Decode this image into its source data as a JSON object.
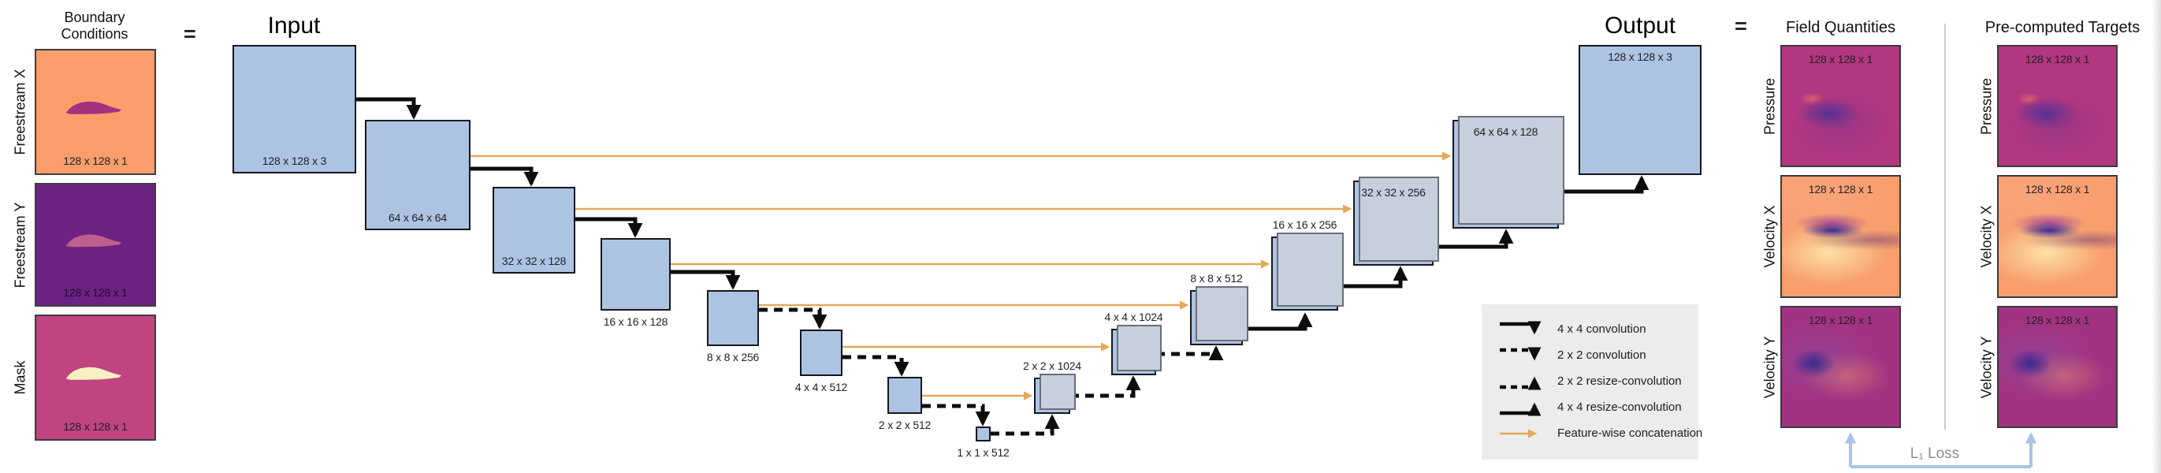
{
  "colors": {
    "node_fill": "#adc3e2",
    "node_border": "#16161e",
    "node_shadow": "#c6cfdb",
    "arrow_black": "#0d0d0d",
    "concat_orange": "#e2a95c",
    "legend_bg": "#ececec",
    "loss_blue": "#a9c4e4",
    "divider_gray": "#c9c9c9",
    "freestream_x_bg": "#f99d6a",
    "freestream_x_foil": "#a63080",
    "freestream_y_bg": "#6b2282",
    "freestream_y_foil": "#c05f8d",
    "mask_bg": "#c04480",
    "mask_foil": "#f8f0c0",
    "pressure_bg": "#b23680",
    "velocity_x_bg": "#f89e6c",
    "velocity_y_bg": "#a23382"
  },
  "left_panel": {
    "title": "Boundary Conditions",
    "equals": "=",
    "items": [
      {
        "label": "Freestream X",
        "dims": "128 x 128 x 1",
        "type": "bc-fsx"
      },
      {
        "label": "Freestream Y",
        "dims": "128 x 128 x 1",
        "type": "bc-fsy"
      },
      {
        "label": "Mask",
        "dims": "128 x 128 x 1",
        "type": "bc-mask"
      }
    ]
  },
  "network": {
    "input_title": "Input",
    "output_title": "Output",
    "nodes": [
      {
        "id": "input",
        "dims": "128 x 128 x 3"
      },
      {
        "id": "e64",
        "dims": "64 x 64 x 64"
      },
      {
        "id": "e32",
        "dims": "32 x 32 x 128"
      },
      {
        "id": "e16",
        "dims": "16 x 16 x 128"
      },
      {
        "id": "e8",
        "dims": "8 x 8 x 256"
      },
      {
        "id": "e4",
        "dims": "4 x 4 x 512"
      },
      {
        "id": "e2",
        "dims": "2 x 2 x 512"
      },
      {
        "id": "e1",
        "dims": "1 x 1 x 512"
      },
      {
        "id": "d2",
        "dims": "2 x 2 x 1024"
      },
      {
        "id": "d4",
        "dims": "4 x 4 x 1024"
      },
      {
        "id": "d8",
        "dims": "8 x 8 x 512"
      },
      {
        "id": "d16",
        "dims": "16 x 16 x 256"
      },
      {
        "id": "d32",
        "dims": "32 x 32 x 256"
      },
      {
        "id": "d64",
        "dims": "64 x 64 x 128"
      },
      {
        "id": "out",
        "dims": "128 x 128 x 3"
      }
    ],
    "connections": [
      {
        "from": "input",
        "to": "e64",
        "type": "4 x 4 convolution"
      },
      {
        "from": "e64",
        "to": "e32",
        "type": "4 x 4 convolution"
      },
      {
        "from": "e32",
        "to": "e16",
        "type": "4 x 4 convolution"
      },
      {
        "from": "e16",
        "to": "e8",
        "type": "4 x 4 convolution"
      },
      {
        "from": "e8",
        "to": "e4",
        "type": "2 x 2 convolution"
      },
      {
        "from": "e4",
        "to": "e2",
        "type": "2 x 2 convolution"
      },
      {
        "from": "e2",
        "to": "e1",
        "type": "2 x 2 convolution"
      },
      {
        "from": "e1",
        "to": "d2",
        "type": "2 x 2 resize-convolution"
      },
      {
        "from": "d2",
        "to": "d4",
        "type": "2 x 2 resize-convolution"
      },
      {
        "from": "d4",
        "to": "d8",
        "type": "2 x 2 resize-convolution"
      },
      {
        "from": "d8",
        "to": "d16",
        "type": "4 x 4 resize-convolution"
      },
      {
        "from": "d16",
        "to": "d32",
        "type": "4 x 4 resize-convolution"
      },
      {
        "from": "d32",
        "to": "d64",
        "type": "4 x 4 resize-convolution"
      },
      {
        "from": "d64",
        "to": "out",
        "type": "4 x 4 resize-convolution"
      },
      {
        "from": "e64",
        "to": "d64",
        "type": "Feature-wise concatenation"
      },
      {
        "from": "e32",
        "to": "d32",
        "type": "Feature-wise concatenation"
      },
      {
        "from": "e16",
        "to": "d16",
        "type": "Feature-wise concatenation"
      },
      {
        "from": "e8",
        "to": "d8",
        "type": "Feature-wise concatenation"
      },
      {
        "from": "e4",
        "to": "d4",
        "type": "Feature-wise concatenation"
      },
      {
        "from": "e2",
        "to": "d2",
        "type": "Feature-wise concatenation"
      }
    ]
  },
  "legend": {
    "items": [
      {
        "type": "conv-solid",
        "label": "4 x 4 convolution"
      },
      {
        "type": "conv-dashed",
        "label": "2 x 2 convolution"
      },
      {
        "type": "resize-dashed",
        "label": "2 x 2 resize-convolution"
      },
      {
        "type": "resize-solid",
        "label": "4 x 4 resize-convolution"
      },
      {
        "type": "concat",
        "label": "Feature-wise concatenation"
      }
    ]
  },
  "right_panel": {
    "equals": "=",
    "field_title": "Field Quantities",
    "targets_title": "Pre-computed Targets",
    "rows": [
      {
        "label": "Pressure",
        "dims": "128 x 128 x 1",
        "type": "pressure"
      },
      {
        "label": "Velocity X",
        "dims": "128 x 128 x 1",
        "type": "velx"
      },
      {
        "label": "Velocity Y",
        "dims": "128 x 128 x 1",
        "type": "vely"
      }
    ],
    "loss_label": "L₁ Loss"
  }
}
